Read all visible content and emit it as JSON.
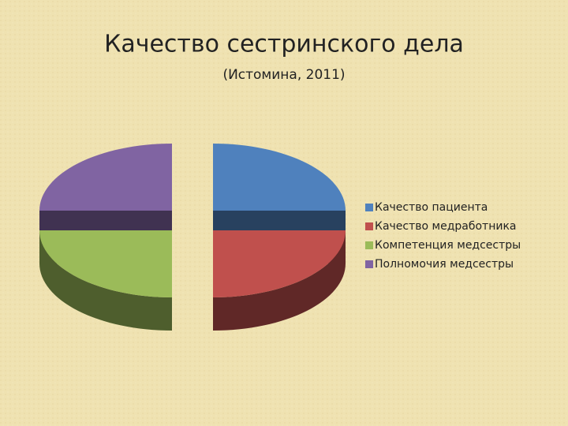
{
  "chart_data": {
    "type": "pie3d",
    "title": "Качество сестринского дела",
    "subtitle": "(Истомина, 2011)",
    "categories": [
      "Качество пациента",
      "Качество медработника",
      "Компетенция медсестры",
      "Полномочия медсестры"
    ],
    "values": [
      25,
      25,
      25,
      25
    ],
    "colors": [
      "#4f81bd",
      "#c0504d",
      "#9bbb59",
      "#8064a2"
    ],
    "legend": "right"
  }
}
